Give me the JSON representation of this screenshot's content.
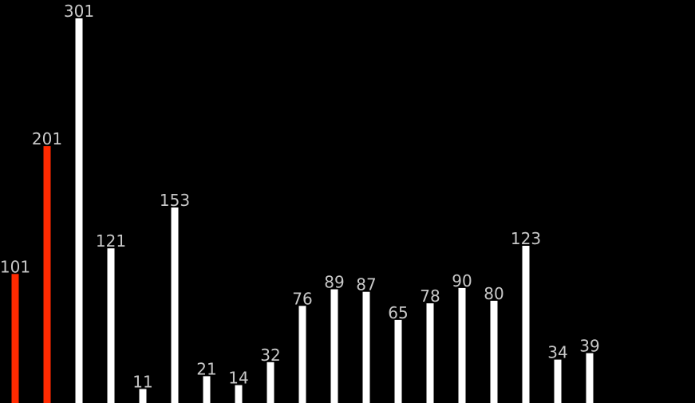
{
  "colors": {
    "background": "#000000",
    "bar_default": "#ffffff",
    "bar_highlight": "#ff2a00",
    "label": "#c8c8c8"
  },
  "chart_data": {
    "type": "bar",
    "title": "",
    "xlabel": "",
    "ylabel": "",
    "ylim": [
      0,
      301
    ],
    "grid": false,
    "axes_visible": false,
    "values": [
      101,
      201,
      301,
      121,
      11,
      153,
      21,
      14,
      32,
      76,
      89,
      87,
      65,
      78,
      90,
      80,
      123,
      34,
      39
    ],
    "highlighted_indices": [
      0,
      1
    ],
    "data_labels": [
      "101",
      "201",
      "301",
      "121",
      "11",
      "153",
      "21",
      "14",
      "32",
      "76",
      "89",
      "87",
      "65",
      "78",
      "90",
      "80",
      "123",
      "34",
      "39"
    ]
  }
}
